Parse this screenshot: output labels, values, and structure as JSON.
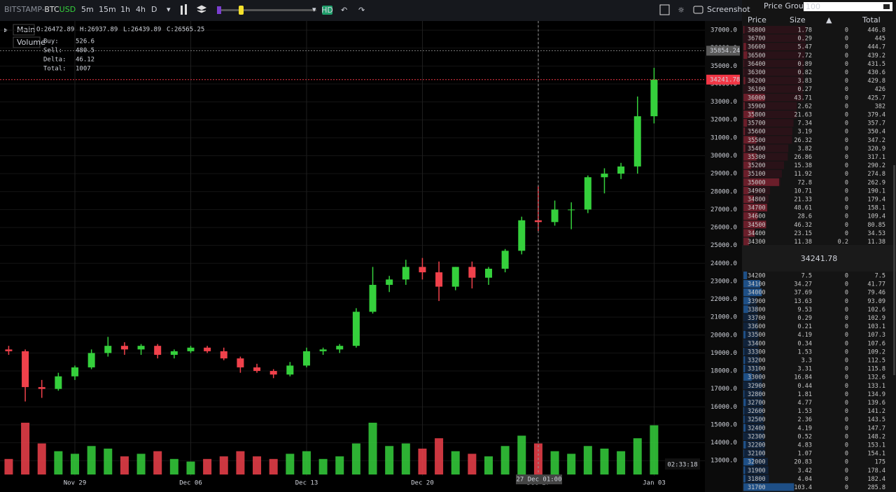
{
  "toolbar": {
    "exchange": "BITSTAMP-",
    "base": "BTC",
    "quote": "USD",
    "intervals": [
      "5m",
      "15m",
      "1h",
      "4h",
      "D"
    ],
    "active_interval": 3,
    "hd": "HD",
    "screenshot": "Screenshot"
  },
  "legend": {
    "main": "Main",
    "volume": "Volume",
    "ohlc": [
      {
        "label": "O:",
        "value": 26472.89
      },
      {
        "label": "H:",
        "value": 26937.89
      },
      {
        "label": "L:",
        "value": 26439.89
      },
      {
        "label": "C:",
        "value": 26565.25
      }
    ],
    "stats": [
      {
        "label": "Buy:",
        "value": 526.6
      },
      {
        "label": "Sell:",
        "value": 480.5
      },
      {
        "label": "Delta:",
        "value": 46.12
      },
      {
        "label": "Total:",
        "value": 1007
      }
    ]
  },
  "chart": {
    "type": "candlestick",
    "ylim": [
      12150,
      37510
    ],
    "yticks": [
      {
        "value": 37000,
        "label": "37000.0"
      },
      {
        "value": 36000,
        "label": "36000.0"
      },
      {
        "value": 35000,
        "label": "35000.0"
      },
      {
        "value": 34000,
        "label": "34000.0"
      },
      {
        "value": 33000,
        "label": "33000.0"
      },
      {
        "value": 32000,
        "label": "32000.0"
      },
      {
        "value": 31000,
        "label": "31000.0"
      },
      {
        "value": 30000,
        "label": "30000.0"
      },
      {
        "value": 29000,
        "label": "29000.0"
      },
      {
        "value": 28000,
        "label": "28000.0"
      },
      {
        "value": 27000,
        "label": "27000.0"
      },
      {
        "value": 26000,
        "label": "26000.0"
      },
      {
        "value": 25000,
        "label": "25000.0"
      },
      {
        "value": 24000,
        "label": "24000.0"
      },
      {
        "value": 23000,
        "label": "23000.0"
      },
      {
        "value": 22000,
        "label": "22000.0"
      },
      {
        "value": 21000,
        "label": "21000.0"
      },
      {
        "value": 20000,
        "label": "20000.0"
      },
      {
        "value": 19000,
        "label": "19000.0"
      },
      {
        "value": 18000,
        "label": "18000.0"
      },
      {
        "value": 17000,
        "label": "17000.0"
      },
      {
        "value": 16000,
        "label": "16000.0"
      },
      {
        "value": 15000,
        "label": "15000.0"
      },
      {
        "value": 14000,
        "label": "14000.0"
      },
      {
        "value": 13000,
        "label": "13000.0"
      }
    ],
    "xticks": [
      "Nov 29",
      "Dec 06",
      "Dec 13",
      "Dec 20",
      "Dec 27",
      "Jan 03"
    ],
    "up_color": "#35d03c",
    "down_color": "#f0414b",
    "candles": [
      {
        "o": 19200,
        "h": 19400,
        "l": 18900,
        "c": 19100,
        "v": 30
      },
      {
        "o": 19100,
        "h": 19200,
        "l": 16300,
        "c": 17100,
        "v": 100
      },
      {
        "o": 17100,
        "h": 17500,
        "l": 16500,
        "c": 17000,
        "v": 60
      },
      {
        "o": 17000,
        "h": 17900,
        "l": 16900,
        "c": 17700,
        "v": 45
      },
      {
        "o": 17700,
        "h": 18300,
        "l": 17500,
        "c": 18200,
        "v": 40
      },
      {
        "o": 18200,
        "h": 19200,
        "l": 18100,
        "c": 19000,
        "v": 55
      },
      {
        "o": 19000,
        "h": 19900,
        "l": 18800,
        "c": 19400,
        "v": 50
      },
      {
        "o": 19400,
        "h": 19600,
        "l": 18900,
        "c": 19200,
        "v": 35
      },
      {
        "o": 19200,
        "h": 19500,
        "l": 18900,
        "c": 19400,
        "v": 40
      },
      {
        "o": 19400,
        "h": 19500,
        "l": 18700,
        "c": 18900,
        "v": 45
      },
      {
        "o": 18900,
        "h": 19200,
        "l": 18700,
        "c": 19100,
        "v": 30
      },
      {
        "o": 19100,
        "h": 19400,
        "l": 19000,
        "c": 19300,
        "v": 25
      },
      {
        "o": 19300,
        "h": 19400,
        "l": 19000,
        "c": 19100,
        "v": 30
      },
      {
        "o": 19100,
        "h": 19300,
        "l": 18600,
        "c": 18700,
        "v": 35
      },
      {
        "o": 18700,
        "h": 18800,
        "l": 17900,
        "c": 18200,
        "v": 45
      },
      {
        "o": 18200,
        "h": 18400,
        "l": 17900,
        "c": 18000,
        "v": 35
      },
      {
        "o": 18000,
        "h": 18100,
        "l": 17600,
        "c": 17800,
        "v": 30
      },
      {
        "o": 17800,
        "h": 18500,
        "l": 17700,
        "c": 18300,
        "v": 40
      },
      {
        "o": 18300,
        "h": 19300,
        "l": 18200,
        "c": 19100,
        "v": 45
      },
      {
        "o": 19100,
        "h": 19300,
        "l": 18900,
        "c": 19200,
        "v": 30
      },
      {
        "o": 19200,
        "h": 19500,
        "l": 19000,
        "c": 19400,
        "v": 35
      },
      {
        "o": 19400,
        "h": 21500,
        "l": 19300,
        "c": 21300,
        "v": 60
      },
      {
        "o": 21300,
        "h": 23800,
        "l": 21200,
        "c": 22800,
        "v": 100
      },
      {
        "o": 22800,
        "h": 23300,
        "l": 22400,
        "c": 23100,
        "v": 55
      },
      {
        "o": 23100,
        "h": 24200,
        "l": 22800,
        "c": 23800,
        "v": 60
      },
      {
        "o": 23800,
        "h": 24300,
        "l": 23100,
        "c": 23500,
        "v": 50
      },
      {
        "o": 23500,
        "h": 24100,
        "l": 21900,
        "c": 22700,
        "v": 70
      },
      {
        "o": 22700,
        "h": 23800,
        "l": 22500,
        "c": 23800,
        "v": 45
      },
      {
        "o": 23800,
        "h": 24100,
        "l": 22600,
        "c": 23200,
        "v": 40
      },
      {
        "o": 23200,
        "h": 23800,
        "l": 22800,
        "c": 23700,
        "v": 35
      },
      {
        "o": 23700,
        "h": 24800,
        "l": 23500,
        "c": 24700,
        "v": 55
      },
      {
        "o": 24700,
        "h": 26600,
        "l": 24500,
        "c": 26400,
        "v": 75
      },
      {
        "o": 26400,
        "h": 28300,
        "l": 25800,
        "c": 26300,
        "v": 60
      },
      {
        "o": 26300,
        "h": 27500,
        "l": 26100,
        "c": 27000,
        "v": 45
      },
      {
        "o": 27000,
        "h": 27400,
        "l": 25900,
        "c": 27000,
        "v": 40
      },
      {
        "o": 27000,
        "h": 28900,
        "l": 26800,
        "c": 28800,
        "v": 55
      },
      {
        "o": 28800,
        "h": 29300,
        "l": 27900,
        "c": 29000,
        "v": 50
      },
      {
        "o": 29000,
        "h": 29600,
        "l": 28700,
        "c": 29400,
        "v": 45
      },
      {
        "o": 29400,
        "h": 33300,
        "l": 29000,
        "c": 32200,
        "v": 70
      },
      {
        "o": 32200,
        "h": 34900,
        "l": 31800,
        "c": 34241.78,
        "v": 95
      }
    ],
    "marked_price": 35854.24,
    "last_price": 34241.78,
    "clock": "02:33:18",
    "crosshair_label": "27 Dec 01:00"
  },
  "orderbook": {
    "title": "Price Grouping",
    "grouping": "100",
    "headers": [
      "Price",
      "Size",
      "▲",
      "Total"
    ],
    "asks": [
      [
        36800,
        1.78,
        0,
        446.8
      ],
      [
        36700,
        0.29,
        0,
        445
      ],
      [
        36600,
        5.47,
        0,
        444.7
      ],
      [
        36500,
        7.72,
        0,
        439.2
      ],
      [
        36400,
        0.89,
        0,
        431.5
      ],
      [
        36300,
        0.82,
        0,
        430.6
      ],
      [
        36200,
        3.83,
        0,
        429.8
      ],
      [
        36100,
        0.27,
        0,
        426
      ],
      [
        36000,
        43.71,
        0,
        425.7
      ],
      [
        35900,
        2.62,
        0,
        382
      ],
      [
        35800,
        21.63,
        0,
        379.4
      ],
      [
        35700,
        7.34,
        0,
        357.7
      ],
      [
        35600,
        3.19,
        0,
        350.4
      ],
      [
        35500,
        26.32,
        0,
        347.2
      ],
      [
        35400,
        3.82,
        0,
        320.9
      ],
      [
        35300,
        26.86,
        0,
        317.1
      ],
      [
        35200,
        15.38,
        0,
        290.2
      ],
      [
        35100,
        11.92,
        0,
        274.8
      ],
      [
        35000,
        72.8,
        0,
        262.9
      ],
      [
        34900,
        10.71,
        0,
        190.1
      ],
      [
        34800,
        21.33,
        0,
        179.4
      ],
      [
        34700,
        48.61,
        0,
        158.1
      ],
      [
        34600,
        28.6,
        0,
        109.4
      ],
      [
        34500,
        46.32,
        0,
        80.85
      ],
      [
        34400,
        23.15,
        0,
        34.53
      ],
      [
        34300,
        11.38,
        0.2,
        11.38
      ]
    ],
    "mid": 34241.78,
    "bids": [
      [
        34200,
        7.5,
        0,
        7.5
      ],
      [
        34100,
        34.27,
        0,
        41.77
      ],
      [
        34000,
        37.69,
        0,
        79.46
      ],
      [
        33900,
        13.63,
        0,
        93.09
      ],
      [
        33800,
        9.53,
        0,
        102.6
      ],
      [
        33700,
        0.29,
        0,
        102.9
      ],
      [
        33600,
        0.21,
        0,
        103.1
      ],
      [
        33500,
        4.19,
        0,
        107.3
      ],
      [
        33400,
        0.34,
        0,
        107.6
      ],
      [
        33300,
        1.53,
        0,
        109.2
      ],
      [
        33200,
        3.3,
        0,
        112.5
      ],
      [
        33100,
        3.31,
        0,
        115.8
      ],
      [
        33000,
        16.84,
        0,
        132.6
      ],
      [
        32900,
        0.44,
        0,
        133.1
      ],
      [
        32800,
        1.81,
        0,
        134.9
      ],
      [
        32700,
        4.77,
        0,
        139.6
      ],
      [
        32600,
        1.53,
        0,
        141.2
      ],
      [
        32500,
        2.36,
        0,
        143.5
      ],
      [
        32400,
        4.19,
        0,
        147.7
      ],
      [
        32300,
        0.52,
        0,
        148.2
      ],
      [
        32200,
        4.83,
        0,
        153.1
      ],
      [
        32100,
        1.07,
        0,
        154.1
      ],
      [
        32000,
        20.83,
        0,
        175
      ],
      [
        31900,
        3.42,
        0,
        178.4
      ],
      [
        31800,
        4.04,
        0,
        182.4
      ],
      [
        31700,
        103.4,
        0,
        285.8
      ]
    ]
  }
}
